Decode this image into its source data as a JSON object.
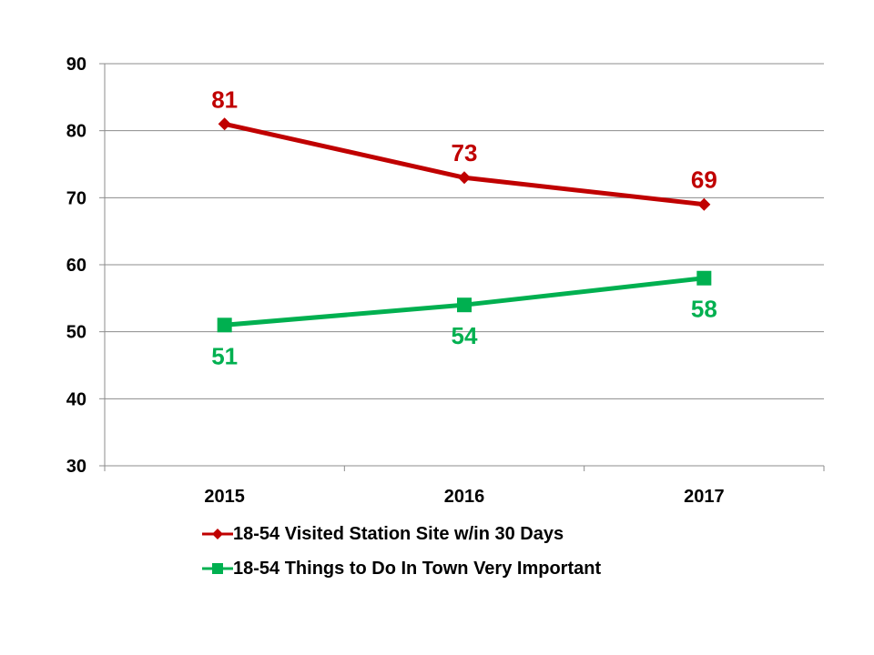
{
  "chart_data": {
    "type": "line",
    "categories": [
      "2015",
      "2016",
      "2017"
    ],
    "ylim": [
      30,
      90
    ],
    "yticks": [
      30,
      40,
      50,
      60,
      70,
      80,
      90
    ],
    "grid": true,
    "legend_position": "bottom",
    "series": [
      {
        "name": "18-54 Visited Station Site w/in 30 Days",
        "values": [
          81,
          73,
          69
        ],
        "labels": [
          "81",
          "73",
          "69"
        ],
        "color": "#c00000",
        "marker": "diamond",
        "label_position": "above"
      },
      {
        "name": "18-54 Things to Do In Town Very Important",
        "values": [
          51,
          54,
          58
        ],
        "labels": [
          "51",
          "54",
          "58"
        ],
        "color": "#00b050",
        "marker": "square",
        "label_position": "below"
      }
    ]
  },
  "legend": {
    "items": [
      {
        "label": "18-54 Visited Station Site w/in 30 Days",
        "color": "#c00000",
        "marker": "diamond"
      },
      {
        "label": "18-54 Things to Do In Town Very Important",
        "color": "#00b050",
        "marker": "square"
      }
    ]
  }
}
